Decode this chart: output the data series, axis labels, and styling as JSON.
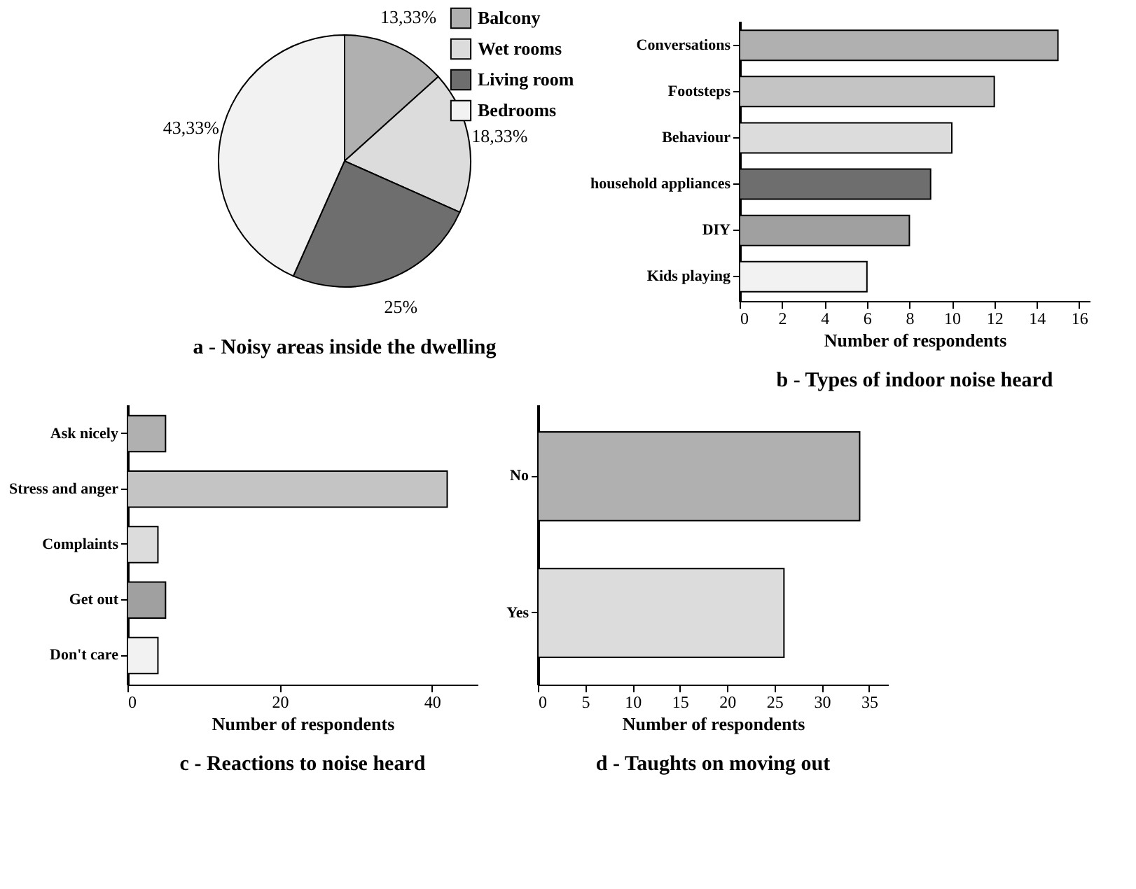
{
  "chart_data": [
    {
      "type": "pie",
      "title": "a - Noisy areas inside the dwelling",
      "categories": [
        "Balcony",
        "Wet rooms",
        "Living room",
        "Bedrooms"
      ],
      "values": [
        13.33,
        18.33,
        25,
        43.33
      ],
      "value_labels": [
        "13,33%",
        "18,33%",
        "25%",
        "43,33%"
      ],
      "colors": [
        "#b0b0b0",
        "#dcdcdc",
        "#6e6e6e",
        "#f2f2f2"
      ],
      "legend": "top right"
    },
    {
      "type": "bar",
      "orientation": "horizontal",
      "title": "b - Types of indoor noise heard",
      "xlabel": "Number of respondents",
      "categories": [
        "Conversations",
        "Footsteps",
        "Behaviour",
        "household appliances",
        "DIY",
        "Kids playing"
      ],
      "values": [
        15,
        12,
        10,
        9,
        8,
        6
      ],
      "colors": [
        "#b0b0b0",
        "#c4c4c4",
        "#dcdcdc",
        "#6e6e6e",
        "#a0a0a0",
        "#f2f2f2"
      ],
      "xlim": [
        0,
        16.5
      ],
      "xticks": [
        0,
        2,
        4,
        6,
        8,
        10,
        12,
        14,
        16
      ]
    },
    {
      "type": "bar",
      "orientation": "horizontal",
      "title": "c - Reactions to noise heard",
      "xlabel": "Number of respondents",
      "categories": [
        "Ask nicely",
        "Stress and anger",
        "Complaints",
        "Get out",
        "Don't care"
      ],
      "values": [
        5,
        42,
        4,
        5,
        4
      ],
      "colors": [
        "#b0b0b0",
        "#c4c4c4",
        "#dcdcdc",
        "#a0a0a0",
        "#f2f2f2"
      ],
      "xlim": [
        0,
        46
      ],
      "xticks": [
        0,
        20,
        40
      ]
    },
    {
      "type": "bar",
      "orientation": "horizontal",
      "title": "d - Taughts on moving out",
      "xlabel": "Number of respondents",
      "categories": [
        "No",
        "Yes"
      ],
      "values": [
        34,
        26
      ],
      "colors": [
        "#b0b0b0",
        "#dcdcdc"
      ],
      "xlim": [
        0,
        37
      ],
      "xticks": [
        0,
        5,
        10,
        15,
        20,
        25,
        30,
        35
      ]
    }
  ]
}
